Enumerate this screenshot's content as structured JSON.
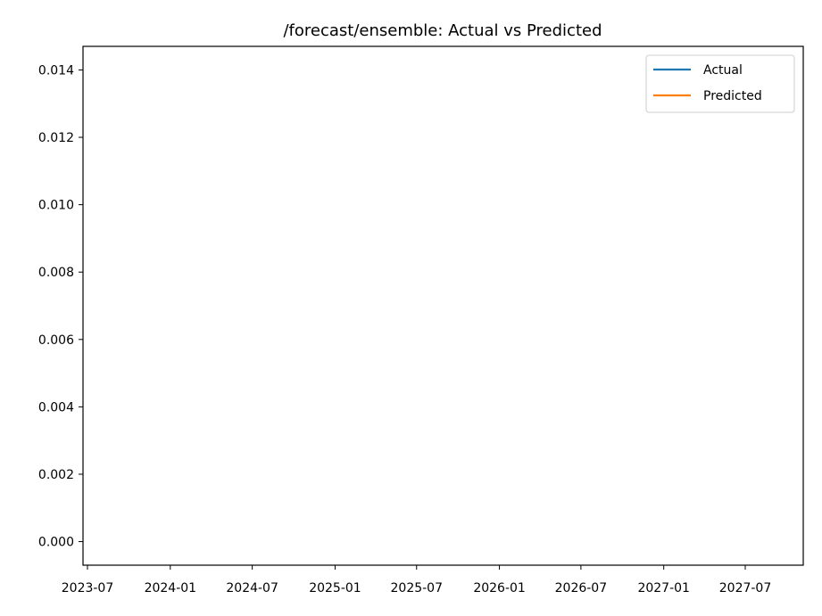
{
  "chart_data": {
    "type": "line",
    "title": "/forecast/ensemble: Actual vs Predicted",
    "xlabel": "",
    "ylabel": "",
    "x_ticks": [
      "2023-07",
      "2024-01",
      "2024-07",
      "2025-01",
      "2025-07",
      "2026-01",
      "2026-07",
      "2027-01",
      "2027-07"
    ],
    "y_ticks": [
      "0.000",
      "0.002",
      "0.004",
      "0.006",
      "0.008",
      "0.010",
      "0.012",
      "0.014"
    ],
    "ylim": [
      -0.0007,
      0.0147
    ],
    "grid": false,
    "legend_position": "top-right",
    "series": [
      {
        "name": "Actual",
        "color": "#1f77b4",
        "x": [],
        "y": []
      },
      {
        "name": "Predicted",
        "color": "#ff7f0e",
        "x": [],
        "y": []
      }
    ]
  }
}
